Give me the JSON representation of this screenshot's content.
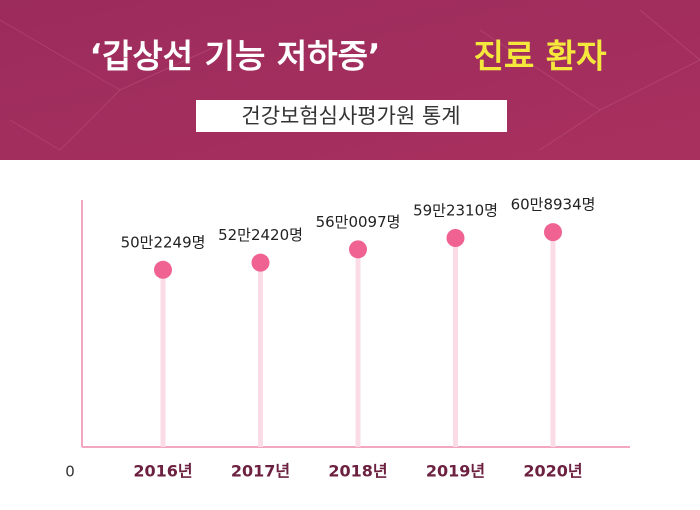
{
  "chart_data": {
    "type": "lollipop",
    "title": "‘갑상선 기능 저하증’",
    "title_emphasis": "진료 환자",
    "subtitle": "건강보험심사평가원 통계",
    "categories": [
      "2016년",
      "2017년",
      "2018년",
      "2019년",
      "2020년"
    ],
    "values": [
      502249,
      522420,
      560097,
      592310,
      608934
    ],
    "value_labels": [
      "50만2249명",
      "52만2420명",
      "56만0097명",
      "59만2310명",
      "60만8934명"
    ],
    "color": "#f06292",
    "ylim": [
      0,
      700000
    ],
    "yticks": [
      0
    ]
  }
}
